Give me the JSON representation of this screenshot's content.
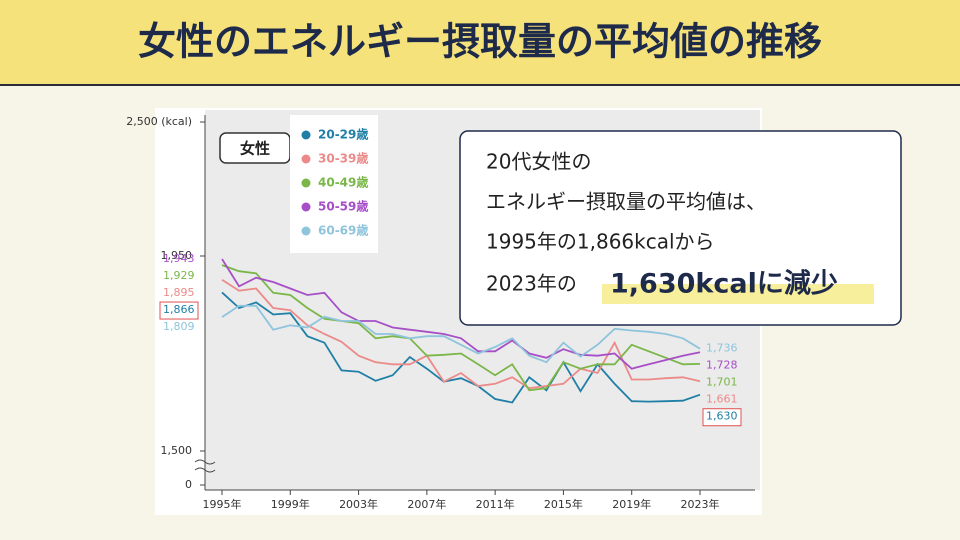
{
  "header": {
    "title": "女性のエネルギー摂取量の平均値の推移"
  },
  "callout": {
    "lines": [
      "20代女性の",
      "エネルギー摂取量の平均値は、",
      "1995年の1,866kcalから"
    ],
    "last_line": {
      "text": "2023年の",
      "highlight": "1,630kcalに減少"
    }
  },
  "chart_data": {
    "type": "line",
    "annotation": "女性",
    "categories": [
      "1995年",
      null,
      null,
      null,
      "1999年",
      null,
      null,
      null,
      "2003年",
      null,
      null,
      null,
      "2007年",
      null,
      null,
      null,
      "2011年",
      null,
      null,
      null,
      "2015年",
      null,
      null,
      null,
      "2019年",
      null,
      null,
      null,
      "2023年"
    ],
    "ylim": [
      0,
      2500
    ],
    "yticks": [
      0,
      {
        "value": 1500,
        "label": "1,500"
      },
      {
        "value": 1950,
        "label": "1,950"
      },
      {
        "value": 2500,
        "label": "2,500 (kcal)"
      }
    ],
    "axis_break": [
      0,
      1500
    ],
    "series": [
      {
        "name": "20-29歳",
        "color": "#1f7fa6",
        "values": [
          1866,
          1830,
          1843,
          1815,
          1818,
          1765,
          1750,
          1686,
          1683,
          1662,
          1675,
          1717,
          1690,
          1660,
          1668,
          1650,
          1620,
          1612,
          1670,
          1640,
          1705,
          1638,
          1700,
          1655,
          1615,
          1614,
          1615,
          1616,
          1630
        ],
        "value_labels": [
          "1,866",
          null,
          null,
          null,
          null,
          null,
          null,
          null,
          null,
          null,
          null,
          null,
          null,
          null,
          null,
          null,
          null,
          null,
          null,
          null,
          null,
          null,
          null,
          null,
          null,
          null,
          null,
          null,
          "1,630"
        ]
      },
      {
        "name": "30-39歳",
        "color": "#ec8a8a",
        "values": [
          1895,
          1870,
          1875,
          1830,
          1825,
          1790,
          1770,
          1752,
          1720,
          1705,
          1700,
          1700,
          1720,
          1660,
          1680,
          1650,
          1655,
          1670,
          1645,
          1650,
          1655,
          1690,
          1680,
          1750,
          1665,
          1665,
          1668,
          1670,
          1661
        ],
        "value_labels": [
          "1,895",
          null,
          null,
          null,
          null,
          null,
          null,
          null,
          null,
          null,
          null,
          null,
          null,
          null,
          null,
          null,
          null,
          null,
          null,
          null,
          null,
          null,
          null,
          null,
          null,
          null,
          null,
          null,
          "1,661"
        ]
      },
      {
        "name": "40-49歳",
        "color": "#7ab648",
        "values": [
          1929,
          1915,
          1910,
          1865,
          1860,
          1830,
          1805,
          1800,
          1795,
          1760,
          1765,
          1760,
          1720,
          1722,
          1725,
          1700,
          1675,
          1700,
          1640,
          1645,
          1705,
          1690,
          1700,
          1700,
          1745,
          1730,
          1715,
          1700,
          1701
        ],
        "value_labels": [
          "1,929",
          null,
          null,
          null,
          null,
          null,
          null,
          null,
          null,
          null,
          null,
          null,
          null,
          null,
          null,
          null,
          null,
          null,
          null,
          null,
          null,
          null,
          null,
          null,
          null,
          null,
          null,
          null,
          "1,701"
        ]
      },
      {
        "name": "50-59歳",
        "color": "#a64fc7",
        "values": [
          1943,
          1880,
          1900,
          1890,
          1875,
          1860,
          1865,
          1820,
          1800,
          1800,
          1785,
          1780,
          1775,
          1770,
          1760,
          1730,
          1730,
          1755,
          1725,
          1715,
          1735,
          1722,
          1720,
          1725,
          1690,
          1700,
          1710,
          1720,
          1728
        ],
        "value_labels": [
          "1,943",
          null,
          null,
          null,
          null,
          null,
          null,
          null,
          null,
          null,
          null,
          null,
          null,
          null,
          null,
          null,
          null,
          null,
          null,
          null,
          null,
          null,
          null,
          null,
          null,
          null,
          null,
          null,
          "1,728"
        ]
      },
      {
        "name": "60-69歳",
        "color": "#8ec4dc",
        "values": [
          1809,
          1835,
          1835,
          1780,
          1790,
          1785,
          1810,
          1800,
          1800,
          1770,
          1770,
          1760,
          1765,
          1765,
          1745,
          1725,
          1740,
          1760,
          1720,
          1705,
          1750,
          1718,
          1745,
          1782,
          1778,
          1775,
          1770,
          1760,
          1736
        ],
        "value_labels": [
          "1,809",
          null,
          null,
          null,
          null,
          null,
          null,
          null,
          null,
          null,
          null,
          null,
          null,
          null,
          null,
          null,
          null,
          null,
          null,
          null,
          null,
          null,
          null,
          null,
          null,
          null,
          null,
          null,
          "1,736"
        ]
      }
    ]
  }
}
